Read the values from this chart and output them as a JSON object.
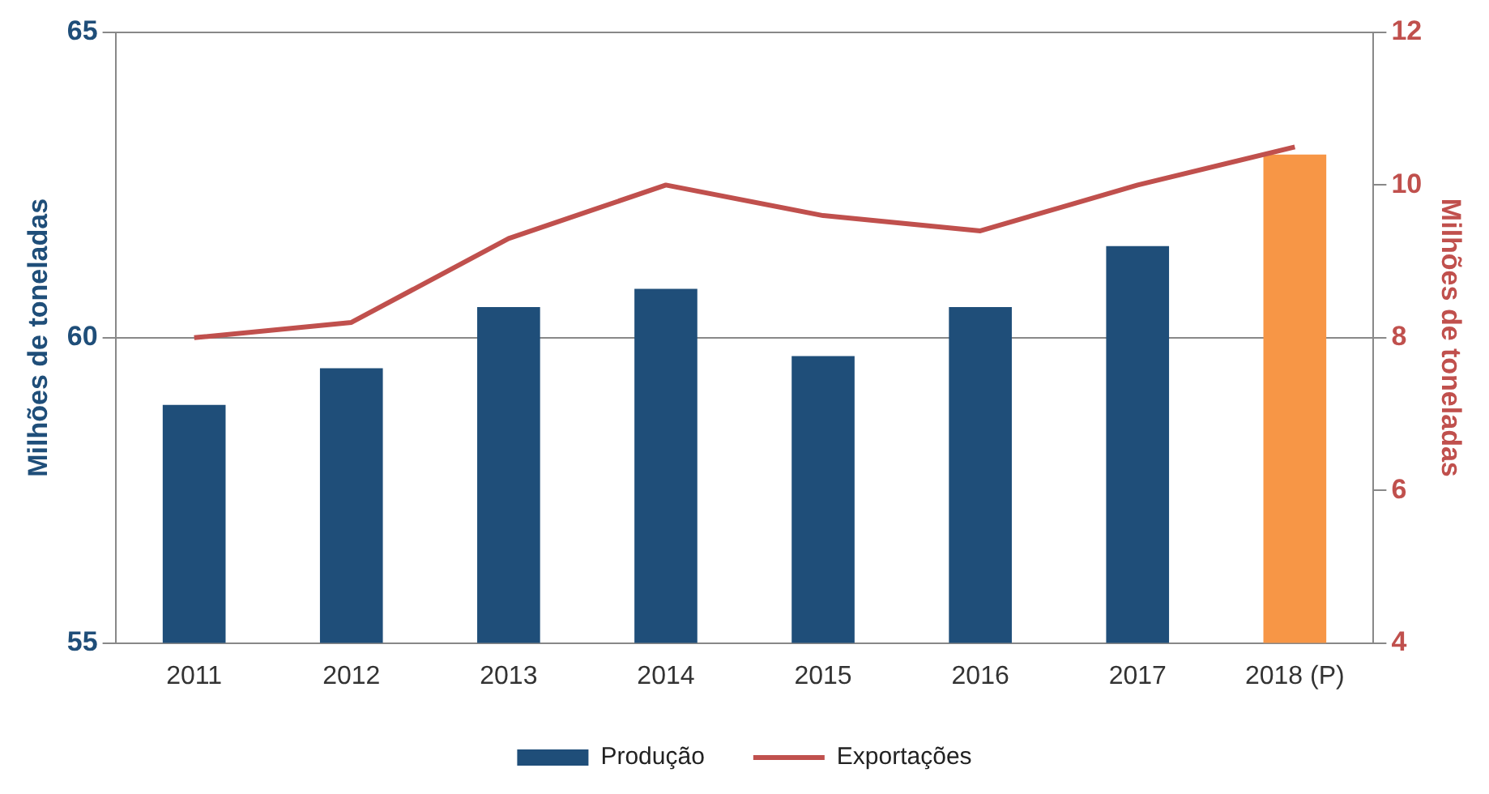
{
  "chart_data": {
    "type": "bar",
    "categories": [
      "2011",
      "2012",
      "2013",
      "2014",
      "2015",
      "2016",
      "2017",
      "2018 (P)"
    ],
    "ylabel": "Milhões de toneladas",
    "y2label": "Milhões de toneladas",
    "series": [
      {
        "name": "Produção",
        "color": "#1f4e79",
        "colors": [
          "#1f4e79",
          "#1f4e79",
          "#1f4e79",
          "#1f4e79",
          "#1f4e79",
          "#1f4e79",
          "#1f4e79",
          "#f79646"
        ],
        "values": [
          58.9,
          59.5,
          60.5,
          60.8,
          59.7,
          60.5,
          61.5,
          63.0
        ]
      },
      {
        "name": "Exportações",
        "type": "line",
        "axis": "y2",
        "color": "#c0504d",
        "values": [
          8.0,
          8.2,
          9.3,
          10.0,
          9.6,
          9.4,
          10.0,
          10.5
        ]
      }
    ],
    "ylim": [
      55,
      65
    ],
    "yticks": [
      55,
      60,
      65
    ],
    "y2lim": [
      4,
      12
    ],
    "y2ticks": [
      4,
      6,
      8,
      10,
      12
    ],
    "grid": "y",
    "legend": "bottom"
  }
}
